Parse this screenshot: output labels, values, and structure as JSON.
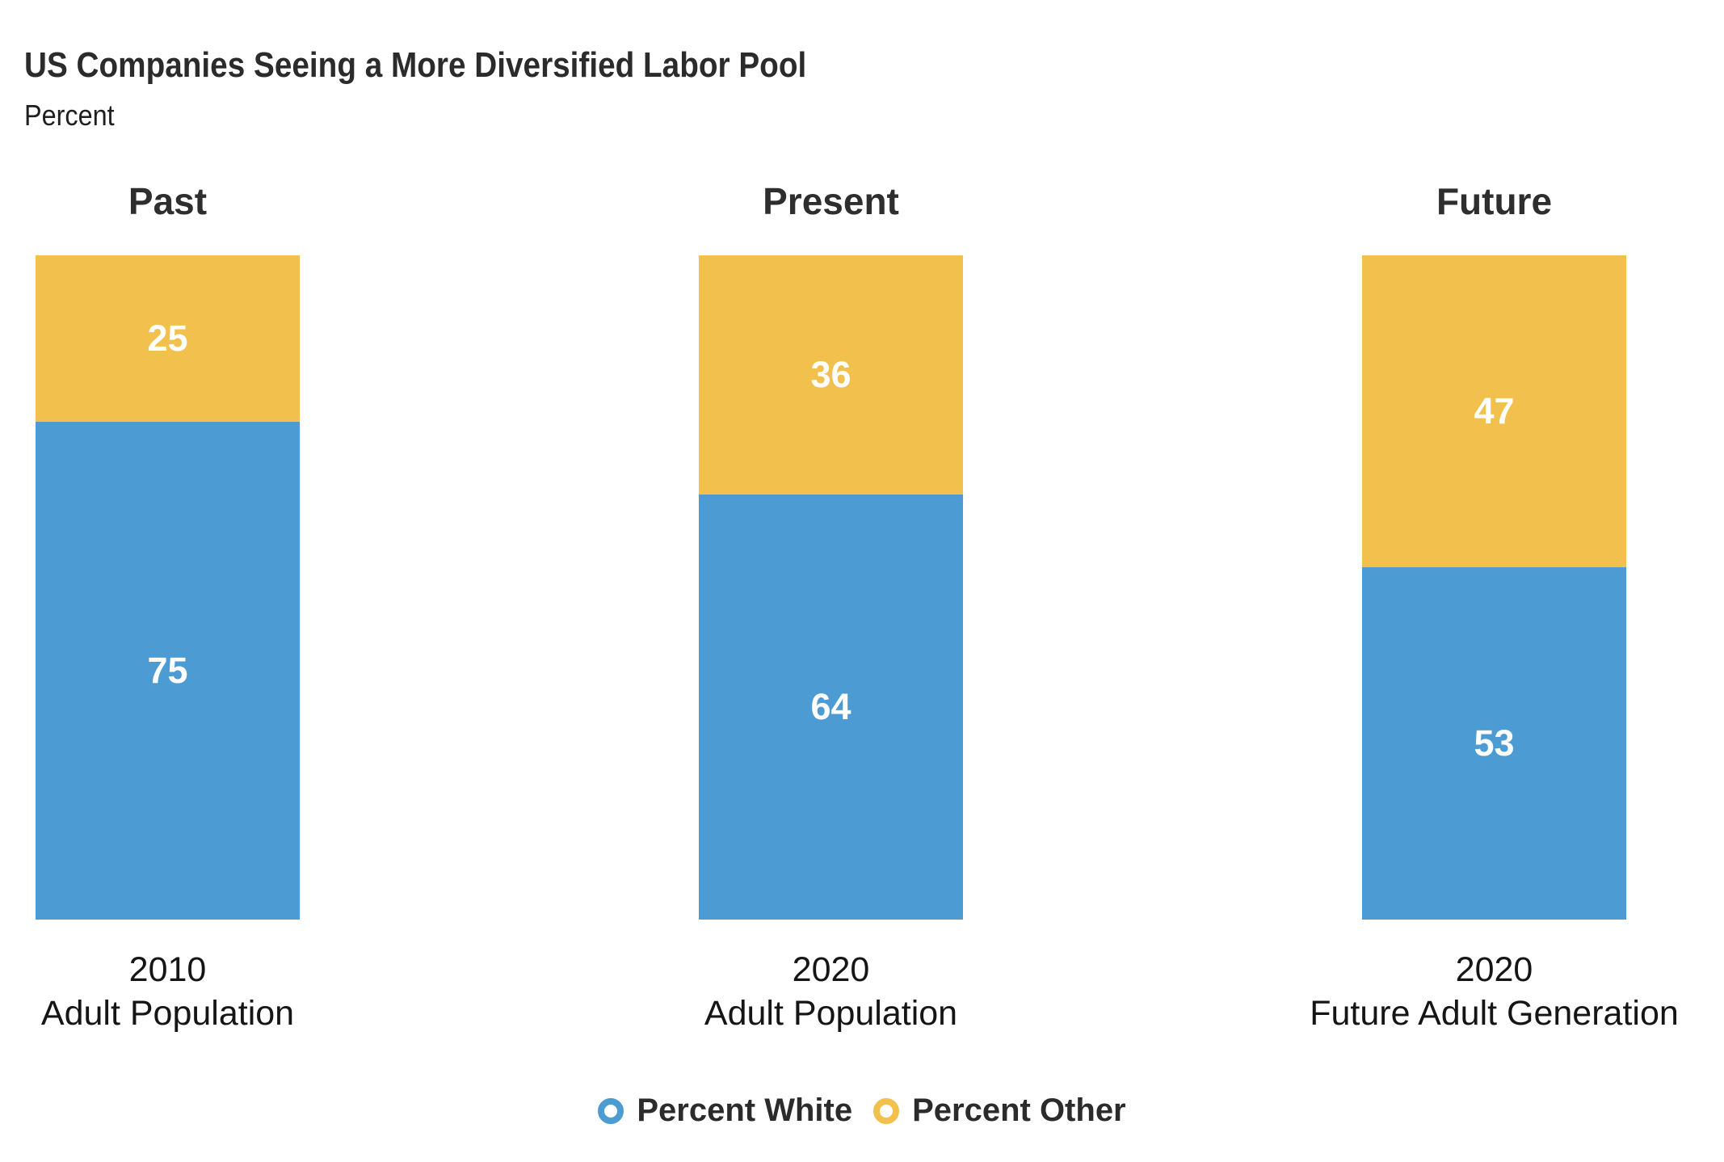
{
  "chart_data": {
    "type": "bar",
    "stacked": true,
    "title": "US Companies Seeing a More Diversified Labor Pool",
    "subtitle": "Percent",
    "ylabel": "Percent",
    "ylim": [
      0,
      100
    ],
    "grid": false,
    "legend_position": "bottom-center",
    "categories": [
      "2010 Adult Population",
      "2020 Adult Population",
      "2020 Future Adult Generation"
    ],
    "groups": [
      {
        "header": "Past",
        "year": "2010",
        "label": "Adult Population",
        "percent_white": 75,
        "percent_other": 25
      },
      {
        "header": "Present",
        "year": "2020",
        "label": "Adult Population",
        "percent_white": 64,
        "percent_other": 36
      },
      {
        "header": "Future",
        "year": "2020",
        "label": "Future Adult Generation",
        "percent_white": 53,
        "percent_other": 47
      }
    ],
    "series": [
      {
        "key": "white",
        "name": "Percent White",
        "color": "#4C9BD3",
        "values": [
          75,
          64,
          53
        ]
      },
      {
        "key": "other",
        "name": "Percent Other",
        "color": "#F2C14D",
        "values": [
          25,
          36,
          47
        ]
      }
    ],
    "legend": [
      {
        "label": "Percent White",
        "color": "#4C9BD3"
      },
      {
        "label": "Percent Other",
        "color": "#F2C14D"
      }
    ],
    "colors": {
      "background": "#ffffff",
      "title_text": "#2b2b2b",
      "axis_text": "#151515",
      "value_text": "#ffffff"
    }
  }
}
